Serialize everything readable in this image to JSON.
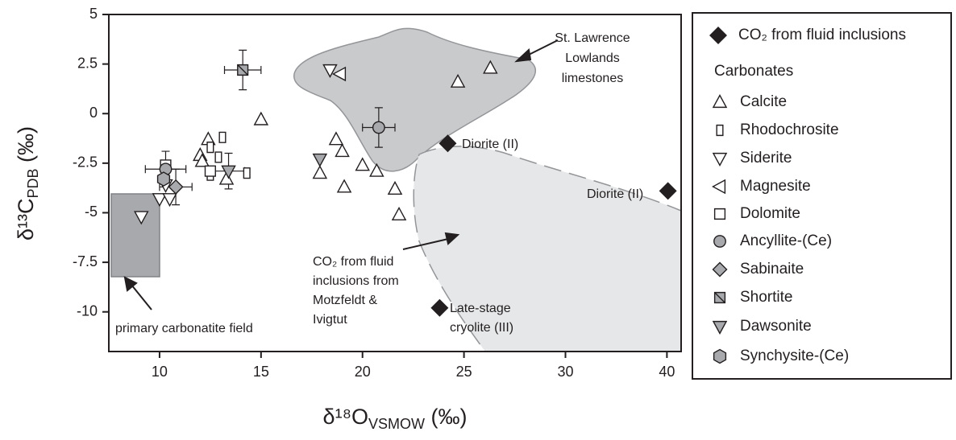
{
  "chart_data": {
    "type": "scatter",
    "x_label": "δ¹⁸O",
    "x_label_sub": "VSMOW",
    "x_label_unit": " (‰)",
    "y_label": "δ¹³C",
    "y_label_sub": "PDB",
    "y_label_unit": " (‰)",
    "xlim": [
      7.5,
      41.4
    ],
    "ylim": [
      -12,
      5
    ],
    "xticks": [
      10,
      15,
      20,
      25,
      30,
      40
    ],
    "yticks": [
      5,
      2.5,
      0,
      -2.5,
      -5,
      -7.5,
      -10
    ],
    "legend_heading": "Carbonates",
    "series": [
      {
        "name": "CO₂ from fluid inclusions",
        "marker": "diamond",
        "color": "#231f20",
        "x": [
          24.2,
          40.1,
          23.8
        ],
        "y": [
          -1.5,
          -3.9,
          -9.8
        ]
      },
      {
        "name": "Calcite",
        "marker": "triangle-up",
        "color": "#ffffff",
        "x": [
          12.4,
          12.0,
          12.1,
          13.3,
          15.0,
          18.7,
          19.0,
          17.9,
          19.1,
          20.0,
          20.7,
          21.6,
          21.8,
          24.7,
          26.3
        ],
        "y": [
          -1.3,
          -2.1,
          -2.4,
          -3.3,
          -0.3,
          -1.3,
          -1.9,
          -3.0,
          -3.7,
          -2.6,
          -2.9,
          -3.8,
          -5.1,
          1.6,
          2.3
        ]
      },
      {
        "name": "Rhodochrosite",
        "marker": "rect-narrow",
        "color": "#ffffff",
        "x": [
          12.5,
          12.9,
          13.1,
          12.5,
          14.3
        ],
        "y": [
          -1.7,
          -2.2,
          -1.2,
          -3.1,
          -3.0
        ]
      },
      {
        "name": "Siderite",
        "marker": "triangle-down",
        "color": "#ffffff",
        "x": [
          9.1,
          10.3,
          10.0,
          10.5,
          18.4
        ],
        "y": [
          -5.2,
          -3.6,
          -4.3,
          -4.3,
          2.2
        ]
      },
      {
        "name": "Magnesite",
        "marker": "triangle-left",
        "color": "#ffffff",
        "x": [
          18.9
        ],
        "y": [
          2.0
        ]
      },
      {
        "name": "Dolomite",
        "marker": "square",
        "color": "#ffffff",
        "x": [
          10.3,
          12.5
        ],
        "y": [
          -2.6,
          -2.9
        ]
      },
      {
        "name": "Ancyllite-(Ce)",
        "marker": "circle",
        "color": "#a7a9ac",
        "x": [
          10.3,
          20.8
        ],
        "y": [
          -2.8,
          -0.7
        ],
        "xerr": [
          1.0,
          0.8
        ],
        "yerr": [
          0.9,
          1.0
        ]
      },
      {
        "name": "Sabinaite",
        "marker": "diamond",
        "color": "#a7a9ac",
        "x": [
          10.8
        ],
        "y": [
          -3.7
        ],
        "xerr": [
          0.8
        ],
        "yerr": [
          0.9
        ]
      },
      {
        "name": "Shortite",
        "marker": "square-x",
        "color": "#a7a9ac",
        "x": [
          14.1
        ],
        "y": [
          2.2
        ],
        "xerr": [
          0.9
        ],
        "yerr": [
          1.0
        ]
      },
      {
        "name": "Dawsonite",
        "marker": "triangle-down",
        "color": "#a7a9ac",
        "x": [
          13.4,
          17.9
        ],
        "y": [
          -2.9,
          -2.3
        ],
        "xerr": [
          0.8,
          null
        ],
        "yerr": [
          0.9,
          null
        ]
      },
      {
        "name": "Synchysite-(Ce)",
        "marker": "hexagon",
        "color": "#a7a9ac",
        "x": [
          10.2
        ],
        "y": [
          -3.3
        ]
      }
    ],
    "annotations": [
      {
        "lines": [
          "St. Lawrence",
          "Lowlands",
          "limestones"
        ]
      },
      {
        "lines": [
          "CO₂ from fluid",
          "inclusions from",
          "Motzfeldt &",
          "Ivigtut"
        ]
      },
      {
        "lines": [
          "primary carbonatite field"
        ]
      },
      {
        "lines": [
          "Diorite (II)"
        ]
      },
      {
        "lines": [
          "Diorite (II)"
        ]
      },
      {
        "lines": [
          "Late-stage",
          "cryolite (III)"
        ]
      }
    ]
  }
}
